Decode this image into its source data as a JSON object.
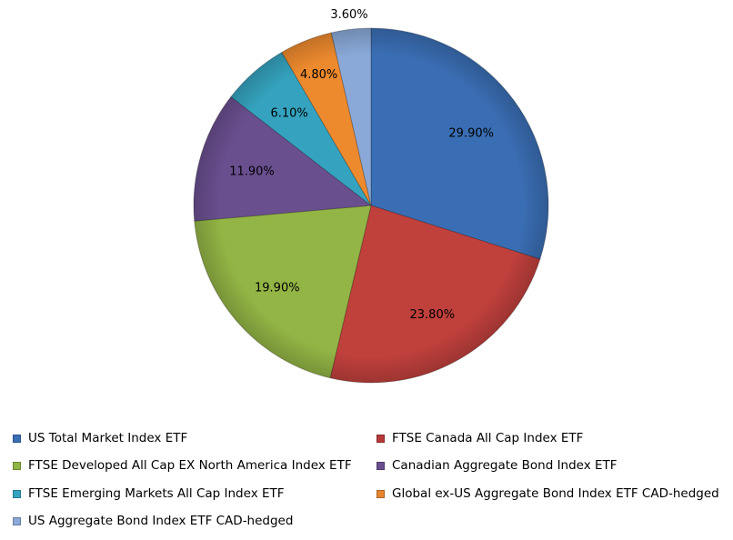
{
  "chart_data": {
    "type": "pie",
    "title": "",
    "start_angle": "12 o'clock, clockwise",
    "categories": [
      "US Total Market Index ETF",
      "FTSE Canada All Cap Index ETF",
      "FTSE Developed All Cap EX North America Index ETF",
      "Canadian Aggregate Bond Index ETF",
      "FTSE Emerging Markets All Cap Index ETF",
      "Global ex-US Aggregate Bond Index ETF CAD-hedged",
      "US Aggregate Bond Index ETF CAD-hedged"
    ],
    "values": [
      29.9,
      23.8,
      19.9,
      11.9,
      6.1,
      4.8,
      3.6
    ],
    "data_labels": [
      "29.90%",
      "23.80%",
      "19.90%",
      "11.90%",
      "6.10%",
      "4.80%",
      "3.60%"
    ],
    "colors": [
      "#3a6eb4",
      "#c0403c",
      "#93b545",
      "#6a4f8f",
      "#35a3bf",
      "#ee8a2e",
      "#8aa9d8"
    ],
    "legend_position": "bottom"
  },
  "legend": {
    "items": [
      {
        "label": "US Total Market Index ETF",
        "color": "#3a6eb4"
      },
      {
        "label": "FTSE Canada All Cap Index ETF",
        "color": "#b7393a"
      },
      {
        "label": "FTSE Developed All Cap EX North America Index ETF",
        "color": "#8fb543"
      },
      {
        "label": "Canadian Aggregate Bond Index ETF",
        "color": "#6a4f8f"
      },
      {
        "label": "FTSE Emerging Markets All Cap Index ETF",
        "color": "#35a3bf"
      },
      {
        "label": "Global ex-US Aggregate Bond Index ETF CAD-hedged",
        "color": "#e5862e"
      },
      {
        "label": "US Aggregate Bond Index ETF CAD-hedged",
        "color": "#8aa9d8"
      }
    ]
  }
}
